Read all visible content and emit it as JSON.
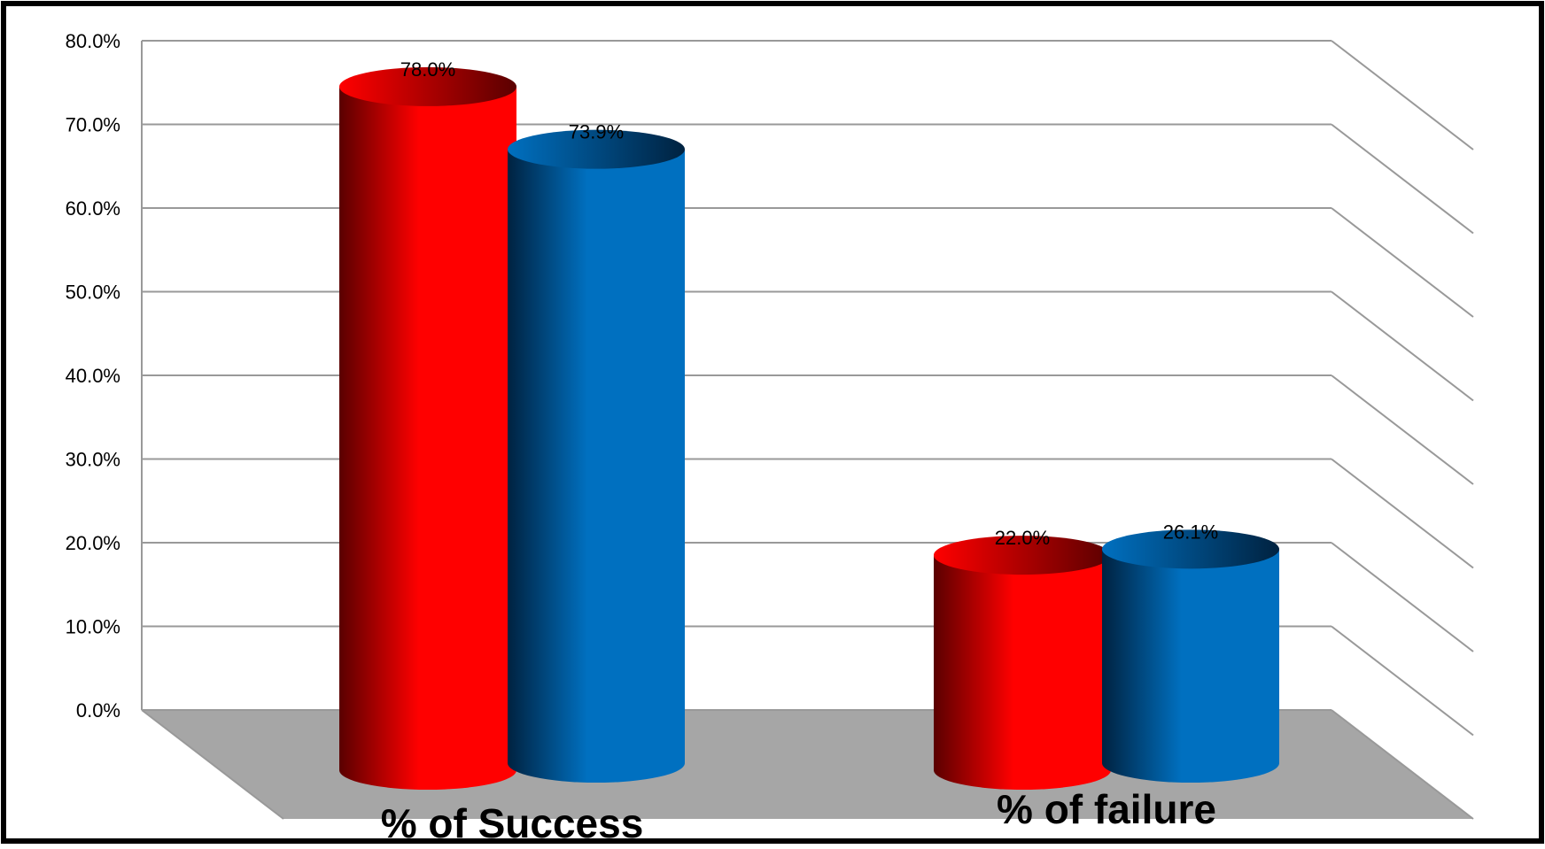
{
  "chart_data": {
    "type": "bar",
    "style": "3d-cylinder",
    "title": "",
    "xlabel": "",
    "ylabel": "",
    "ylim": [
      0,
      80
    ],
    "y_ticks": [
      "0.0%",
      "10.0%",
      "20.0%",
      "30.0%",
      "40.0%",
      "50.0%",
      "60.0%",
      "70.0%",
      "80.0%"
    ],
    "categories": [
      "%  of Success",
      "%  of failure"
    ],
    "series": [
      {
        "values": [
          78.0,
          22.0
        ],
        "labels": [
          "78.0%",
          "22.0%"
        ],
        "color": "#ff0000",
        "dark": "#5a0000"
      },
      {
        "values": [
          73.9,
          26.1
        ],
        "labels": [
          "73.9%",
          "26.1%"
        ],
        "color": "#0070c0",
        "dark": "#002240"
      }
    ],
    "grid": true,
    "legend": "none",
    "floor_color": "#a6a6a6"
  }
}
